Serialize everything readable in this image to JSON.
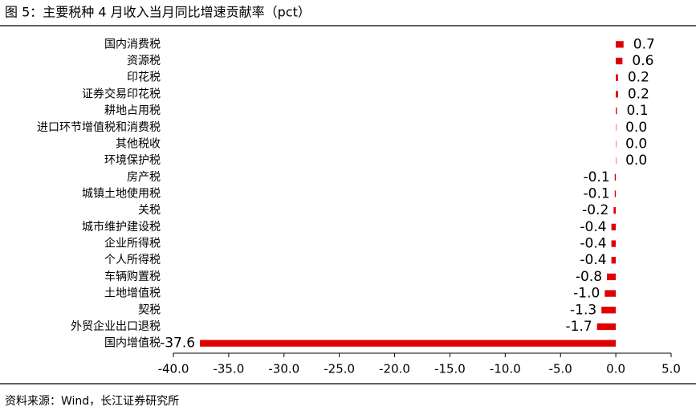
{
  "chart_data": {
    "type": "hbar",
    "title": "图 5：主要税种 4 月收入当月同比增速贡献率（pct）",
    "source": "资料来源：Wind，长江证券研究所",
    "color": "#e00000",
    "categories": [
      "国内消费税",
      "资源税",
      "印花税",
      "证券交易印花税",
      "耕地占用税",
      "进口环节增值税和消费税",
      "其他税收",
      "环境保护税",
      "房产税",
      "城镇土地使用税",
      "关税",
      "城市维护建设税",
      "企业所得税",
      "个人所得税",
      "车辆购置税",
      "土地增值税",
      "契税",
      "外贸企业出口退税",
      "国内增值税"
    ],
    "values": [
      0.7,
      0.6,
      0.2,
      0.2,
      0.1,
      0.0,
      0.0,
      0.0,
      -0.1,
      -0.1,
      -0.2,
      -0.4,
      -0.4,
      -0.4,
      -0.8,
      -1.0,
      -1.3,
      -1.7,
      -37.6
    ],
    "value_labels": [
      "0.7",
      "0.6",
      "0.2",
      "0.2",
      "0.1",
      "0.0",
      "0.0",
      "0.0",
      "-0.1",
      "-0.1",
      "-0.2",
      "-0.4",
      "-0.4",
      "-0.4",
      "-0.8",
      "-1.0",
      "-1.3",
      "-1.7",
      "-37.6"
    ],
    "xlim": [
      -40,
      5
    ],
    "xticks": [
      {
        "value": -40,
        "label": "-40.0"
      },
      {
        "value": -35,
        "label": "-35.0"
      },
      {
        "value": -30,
        "label": "-30.0"
      },
      {
        "value": -25,
        "label": "-25.0"
      },
      {
        "value": -20,
        "label": "-20.0"
      },
      {
        "value": -15,
        "label": "-15.0"
      },
      {
        "value": -10,
        "label": "-10.0"
      },
      {
        "value": -5,
        "label": "-5.0"
      },
      {
        "value": 0,
        "label": "0.0"
      },
      {
        "value": 5,
        "label": "5.0"
      }
    ]
  }
}
